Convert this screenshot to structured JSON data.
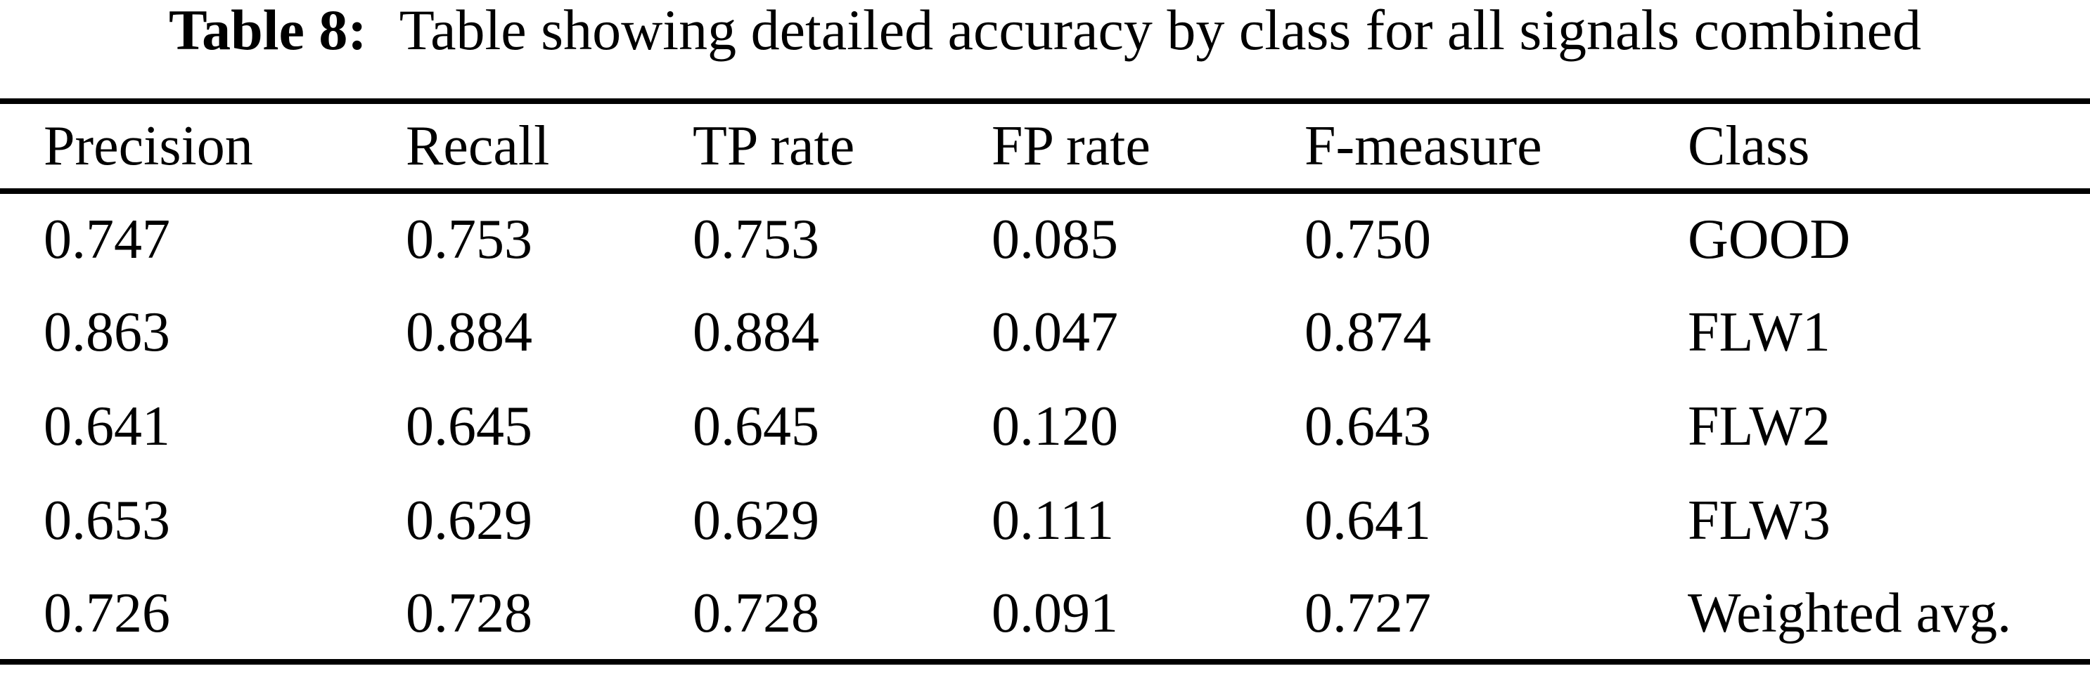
{
  "title": {
    "label": "Table 8:",
    "caption": "Table showing detailed accuracy by class for all signals combined"
  },
  "table": {
    "columns": [
      "Precision",
      "Recall",
      "TP rate",
      "FP rate",
      "F-measure",
      "Class"
    ],
    "rows": [
      [
        "0.747",
        "0.753",
        "0.753",
        "0.085",
        "0.750",
        "GOOD"
      ],
      [
        "0.863",
        "0.884",
        "0.884",
        "0.047",
        "0.874",
        "FLW1"
      ],
      [
        "0.641",
        "0.645",
        "0.645",
        "0.120",
        "0.643",
        "FLW2"
      ],
      [
        "0.653",
        "0.629",
        "0.629",
        "0.111",
        "0.641",
        "FLW3"
      ],
      [
        "0.726",
        "0.728",
        "0.728",
        "0.091",
        "0.727",
        "Weighted avg."
      ]
    ]
  },
  "colors": {
    "text": "#000000",
    "background": "#ffffff",
    "rule": "#000000"
  }
}
